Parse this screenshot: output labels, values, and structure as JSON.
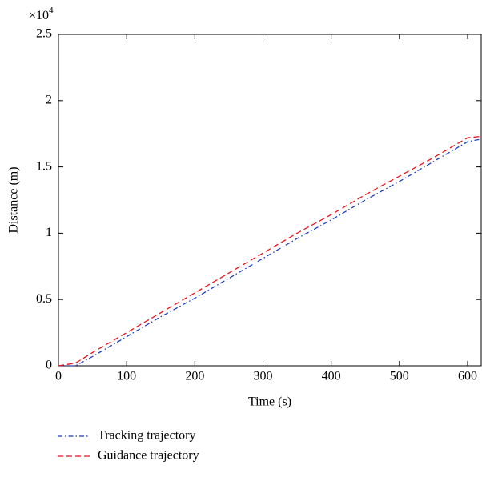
{
  "chart_data": {
    "type": "line",
    "x_label": "Time (s)",
    "y_label": "Distance (m)",
    "y_scale_base": "×10",
    "y_scale_exponent": "4",
    "x": [
      0,
      25,
      50,
      100,
      150,
      200,
      250,
      300,
      350,
      400,
      450,
      500,
      550,
      600,
      620
    ],
    "series": [
      {
        "name": "Tracking trajectory",
        "color": "#1f3fbf",
        "dash": "6,3,1.5,3",
        "values": [
          0,
          0,
          0.07,
          0.22,
          0.37,
          0.51,
          0.66,
          0.81,
          0.96,
          1.1,
          1.25,
          1.39,
          1.54,
          1.69,
          1.71
        ]
      },
      {
        "name": "Guidance trajectory",
        "color": "#e8141c",
        "dash": "7,4",
        "values": [
          0,
          0.02,
          0.1,
          0.25,
          0.4,
          0.55,
          0.7,
          0.85,
          1.0,
          1.14,
          1.29,
          1.43,
          1.57,
          1.72,
          1.73
        ]
      }
    ],
    "xlim": [
      0,
      620
    ],
    "ylim": [
      0,
      2.5
    ],
    "xticks": [
      0,
      100,
      200,
      300,
      400,
      500,
      600
    ],
    "yticks": [
      0,
      0.5,
      1,
      1.5,
      2,
      2.5
    ],
    "legend": "bottom-left",
    "grid": false
  }
}
